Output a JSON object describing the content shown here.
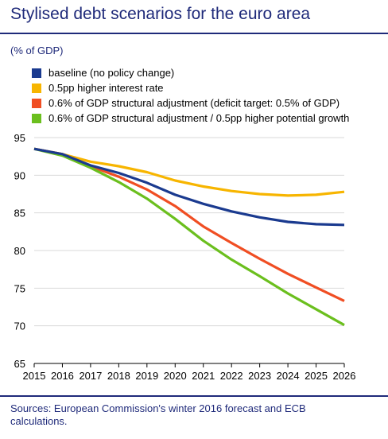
{
  "title": "Stylised debt scenarios for the euro area",
  "unit_label": "(% of GDP)",
  "source": "Sources: European Commission's winter 2016 forecast and ECB calculations.",
  "colors": {
    "baseline": "#1a3a8f",
    "higher_rate": "#f7b500",
    "structural_adjustment": "#f04e23",
    "structural_growth": "#6bbf1e",
    "grid": "#d9d9d9",
    "axis": "#000000"
  },
  "chart_data": {
    "type": "line",
    "title": "Stylised debt scenarios for the euro area",
    "ylabel": "(% of GDP)",
    "xlabel": "",
    "x": [
      2015,
      2016,
      2017,
      2018,
      2019,
      2020,
      2021,
      2022,
      2023,
      2024,
      2025,
      2026
    ],
    "xticks": [
      "2015",
      "2016",
      "2017",
      "2018",
      "2019",
      "2020",
      "2021",
      "2022",
      "2023",
      "2024",
      "2025",
      "2026"
    ],
    "ylim": [
      65,
      95
    ],
    "yticks": [
      "95",
      "90",
      "85",
      "80",
      "75",
      "70",
      "65"
    ],
    "ytick_values": [
      95,
      90,
      85,
      80,
      75,
      70,
      65
    ],
    "grid": "horizontal",
    "legend_position": "top",
    "series": [
      {
        "name": "baseline (no policy change)",
        "color": "#1a3a8f",
        "values": [
          93.5,
          92.8,
          91.3,
          90.3,
          89.0,
          87.4,
          86.2,
          85.2,
          84.4,
          83.8,
          83.5,
          83.4
        ]
      },
      {
        "name": "0.5pp higher interest rate",
        "color": "#f7b500",
        "values": [
          93.5,
          92.8,
          91.8,
          91.2,
          90.4,
          89.3,
          88.5,
          87.9,
          87.5,
          87.3,
          87.4,
          87.8
        ]
      },
      {
        "name": "0.6% of GDP structural adjustment (deficit target: 0.5% of GDP)",
        "color": "#f04e23",
        "values": [
          93.5,
          92.8,
          91.2,
          89.8,
          88.1,
          85.9,
          83.2,
          81.0,
          78.9,
          76.9,
          75.1,
          73.3
        ]
      },
      {
        "name": "0.6% of GDP structural adjustment / 0.5pp higher potential growth",
        "color": "#6bbf1e",
        "values": [
          93.5,
          92.6,
          91.0,
          89.1,
          86.9,
          84.2,
          81.3,
          78.8,
          76.6,
          74.3,
          72.2,
          70.1
        ]
      }
    ]
  }
}
